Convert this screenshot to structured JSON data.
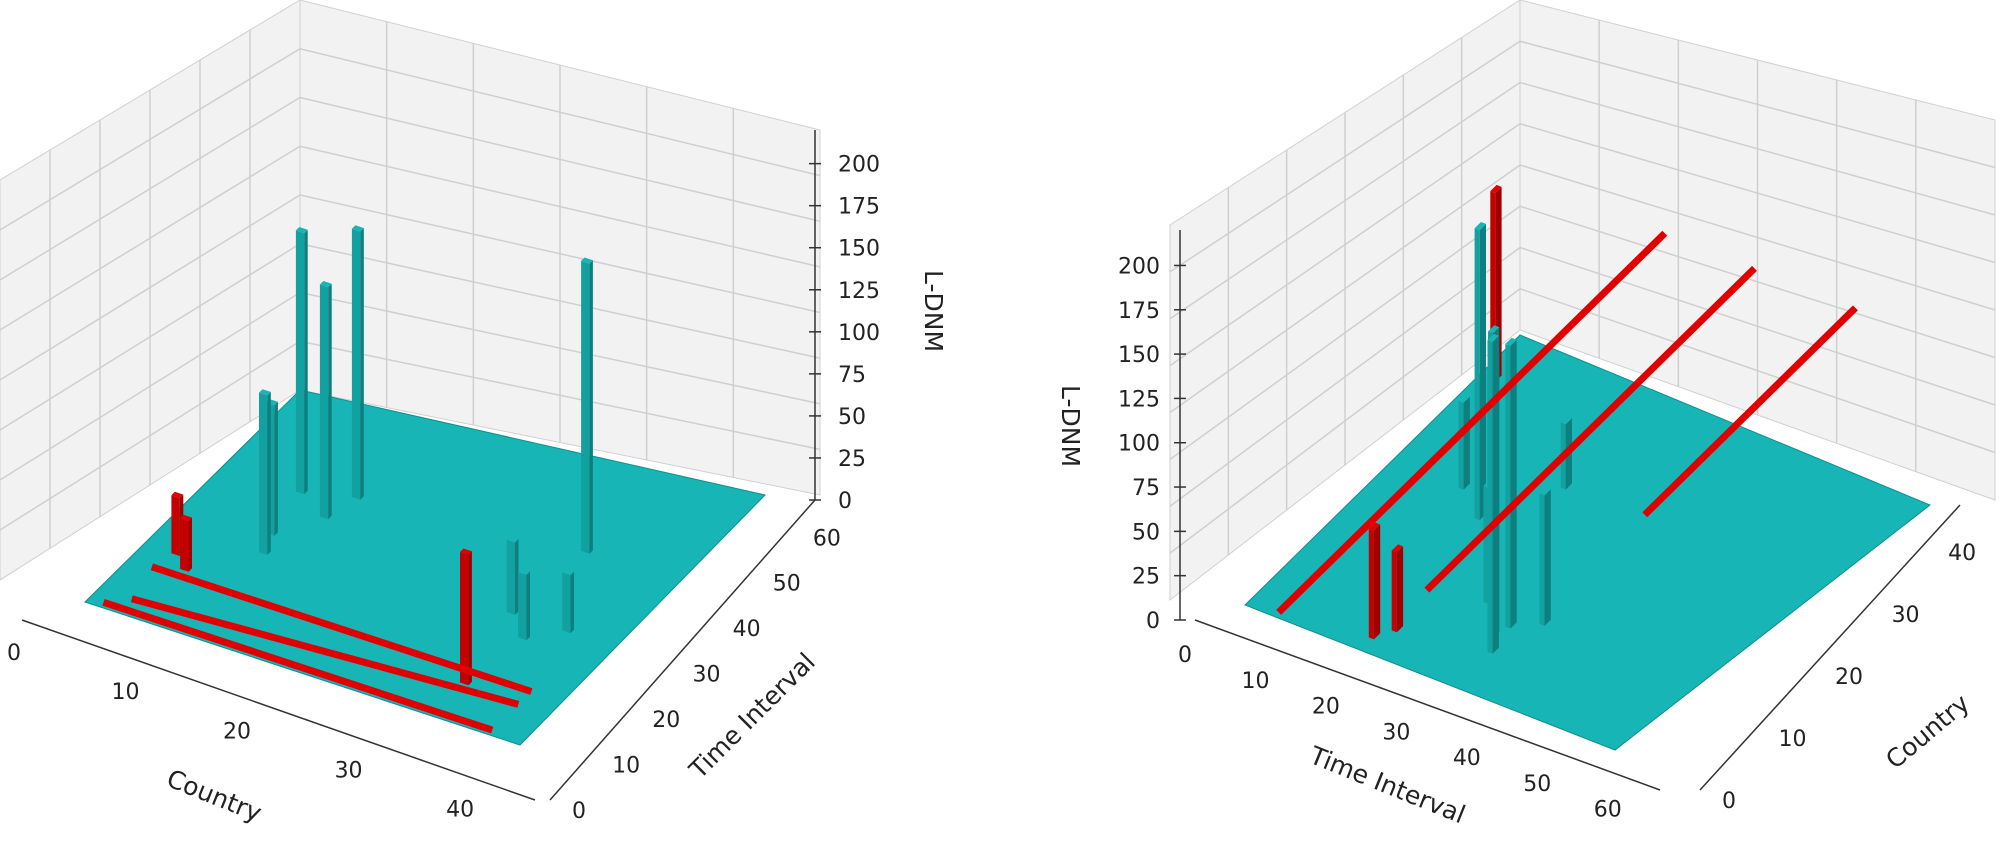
{
  "colors": {
    "surface": "#17b5b5",
    "highlight": "#e00000",
    "pane": "#f2f2f2",
    "grid": "#cfcfcf"
  },
  "chart_data": [
    {
      "type": "bar3d",
      "panel": "left",
      "xlabel": "Country",
      "ylabel": "Time Interval",
      "zlabel": "L-DNM",
      "x_ticks": [
        "0",
        "10",
        "20",
        "30",
        "40"
      ],
      "y_ticks": [
        "0",
        "10",
        "20",
        "30",
        "40",
        "50",
        "60"
      ],
      "z_ticks": [
        "0",
        "25",
        "50",
        "75",
        "100",
        "125",
        "150",
        "175",
        "200"
      ],
      "xlim": [
        0,
        47
      ],
      "ylim": [
        0,
        66
      ],
      "zlim": [
        0,
        220
      ],
      "grid": true,
      "view": "country-front",
      "peaks": [
        {
          "country": 8,
          "time": 42,
          "value": 180
        },
        {
          "country": 12,
          "time": 38,
          "value": 160
        },
        {
          "country": 13,
          "time": 45,
          "value": 185
        },
        {
          "country": 9,
          "time": 30,
          "value": 90
        },
        {
          "country": 10,
          "time": 25,
          "value": 110
        },
        {
          "country": 36,
          "time": 50,
          "value": 200
        },
        {
          "country": 35,
          "time": 30,
          "value": 50
        },
        {
          "country": 38,
          "time": 25,
          "value": 45
        },
        {
          "country": 41,
          "time": 30,
          "value": 40
        }
      ],
      "highlight_peaks": [
        {
          "country": 3,
          "time": 18,
          "value": 40
        },
        {
          "country": 5,
          "time": 15,
          "value": 35
        },
        {
          "country": 37,
          "time": 10,
          "value": 90
        }
      ]
    },
    {
      "type": "bar3d",
      "panel": "right",
      "xlabel": "Time Interval",
      "ylabel": "Country",
      "zlabel": "L-DNM",
      "x_ticks": [
        "0",
        "10",
        "20",
        "30",
        "40",
        "50",
        "60"
      ],
      "y_ticks": [
        "0",
        "10",
        "20",
        "30",
        "40"
      ],
      "z_ticks": [
        "0",
        "25",
        "50",
        "75",
        "100",
        "125",
        "150",
        "175",
        "200"
      ],
      "xlim": [
        0,
        66
      ],
      "ylim": [
        0,
        47
      ],
      "zlim": [
        0,
        220
      ],
      "grid": true,
      "view": "time-front",
      "peaks": [
        {
          "time": 18,
          "country": 22,
          "value": 200
        },
        {
          "time": 35,
          "country": 8,
          "value": 210
        },
        {
          "time": 36,
          "country": 10,
          "value": 195
        },
        {
          "time": 37,
          "country": 6,
          "value": 215
        },
        {
          "time": 30,
          "country": 12,
          "value": 80
        },
        {
          "time": 40,
          "country": 12,
          "value": 90
        },
        {
          "time": 12,
          "country": 25,
          "value": 60
        },
        {
          "time": 25,
          "country": 30,
          "value": 45
        }
      ],
      "highlight_peaks": [
        {
          "time": 2,
          "country": 40,
          "value": 130
        },
        {
          "time": 20,
          "country": 2,
          "value": 75
        },
        {
          "time": 22,
          "country": 4,
          "value": 55
        }
      ]
    }
  ]
}
